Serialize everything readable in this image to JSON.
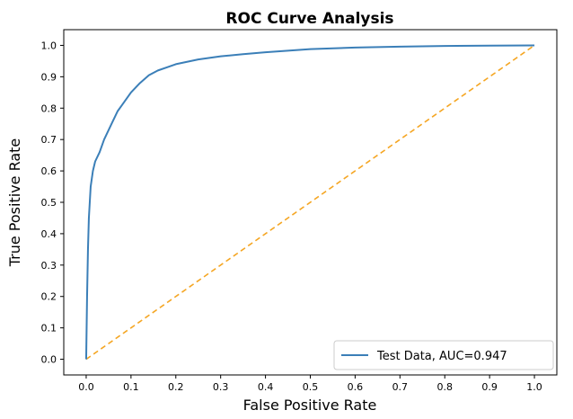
{
  "chart_data": {
    "type": "line",
    "title": "ROC Curve Analysis",
    "xlabel": "False Positive Rate",
    "ylabel": "True Positive Rate",
    "xlim": [
      -0.05,
      1.05
    ],
    "ylim": [
      -0.05,
      1.05
    ],
    "xticks": [
      "0.0",
      "0.1",
      "0.2",
      "0.3",
      "0.4",
      "0.5",
      "0.6",
      "0.7",
      "0.8",
      "0.9",
      "1.0"
    ],
    "yticks": [
      "0.0",
      "0.1",
      "0.2",
      "0.3",
      "0.4",
      "0.5",
      "0.6",
      "0.7",
      "0.8",
      "0.9",
      "1.0"
    ],
    "grid": false,
    "legend_position": "lower-right",
    "series": [
      {
        "name": "Test Data, AUC=0.947",
        "color": "#3b7fb8",
        "style": "solid",
        "x": [
          0.0,
          0.002,
          0.004,
          0.006,
          0.008,
          0.01,
          0.015,
          0.02,
          0.03,
          0.04,
          0.05,
          0.06,
          0.07,
          0.08,
          0.09,
          0.1,
          0.12,
          0.14,
          0.16,
          0.18,
          0.2,
          0.25,
          0.3,
          0.35,
          0.4,
          0.5,
          0.6,
          0.7,
          0.8,
          0.9,
          1.0
        ],
        "y": [
          0.0,
          0.2,
          0.35,
          0.45,
          0.5,
          0.55,
          0.6,
          0.63,
          0.66,
          0.7,
          0.73,
          0.76,
          0.79,
          0.81,
          0.83,
          0.85,
          0.88,
          0.905,
          0.92,
          0.93,
          0.94,
          0.955,
          0.965,
          0.972,
          0.978,
          0.988,
          0.993,
          0.996,
          0.998,
          0.999,
          1.0
        ]
      },
      {
        "name": "",
        "color": "#f5a623",
        "style": "dashed",
        "x": [
          0.0,
          1.0
        ],
        "y": [
          0.0,
          1.0
        ]
      }
    ]
  }
}
